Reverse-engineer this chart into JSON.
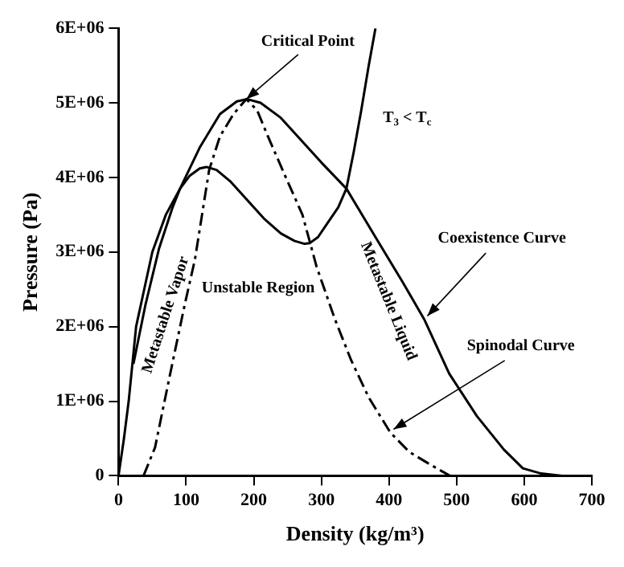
{
  "chart_data": {
    "type": "line",
    "xlabel": "Density (kg/m³)",
    "ylabel": "Pressure (Pa)",
    "xlim": [
      0,
      700
    ],
    "xticks": [
      0,
      100,
      200,
      300,
      400,
      500,
      600,
      700
    ],
    "ylim": [
      0,
      6000000
    ],
    "yticks": [
      0,
      {
        "value": 1000000,
        "label": "1E+06"
      },
      {
        "value": 2000000,
        "label": "2E+06"
      },
      {
        "value": 3000000,
        "label": "3E+06"
      },
      {
        "value": 4000000,
        "label": "4E+06"
      },
      {
        "value": 5000000,
        "label": "5E+06"
      },
      {
        "value": 6000000,
        "label": "6E+06"
      }
    ],
    "grid": false,
    "legend": false,
    "marker": "none",
    "series": [
      {
        "name": "T$_{3}$ < T$_{c}$",
        "color": "#000000",
        "line_style": "solid",
        "x": [
          22,
          40,
          60,
          80,
          91,
          105,
          120,
          130,
          145,
          165,
          190,
          215,
          240,
          260,
          275,
          283,
          295,
          310,
          325,
          337,
          348,
          359,
          370,
          380
        ],
        "values": [
          1500000,
          2300000,
          3050000,
          3600000,
          3850000,
          4020000,
          4120000,
          4140000,
          4100000,
          3950000,
          3700000,
          3450000,
          3250000,
          3150000,
          3110000,
          3120000,
          3200000,
          3400000,
          3600000,
          3850000,
          4350000,
          4900000,
          5500000,
          6000000
        ]
      },
      {
        "name": "Coexistence Curve",
        "color": "#000000",
        "line_style": "solid",
        "x": [
          0,
          8,
          15,
          26,
          50,
          70,
          91,
          120,
          150,
          175,
          190,
          210,
          240,
          270,
          300,
          337,
          380,
          420,
          452,
          489,
          530,
          570,
          598,
          625,
          656
        ],
        "values": [
          0,
          500000,
          1000000,
          2000000,
          3000000,
          3500000,
          3850000,
          4400000,
          4850000,
          5020000,
          5050000,
          5000000,
          4800000,
          4500000,
          4200000,
          3850000,
          3200000,
          2600000,
          2100000,
          1370000,
          800000,
          350000,
          100000,
          30000,
          0
        ]
      },
      {
        "name": "Spinodal Curve",
        "color": "#000000",
        "line_style": "dashed",
        "x": [
          37,
          54,
          76,
          98,
          113,
          134,
          150,
          170,
          189,
          205,
          221,
          245,
          272,
          293,
          320,
          344,
          370,
          402,
          430,
          461,
          490
        ],
        "values": [
          0,
          380000,
          1350000,
          2300000,
          2900000,
          4100000,
          4550000,
          4850000,
          5050000,
          4900000,
          4550000,
          4050000,
          3500000,
          2800000,
          2100000,
          1550000,
          1050000,
          580000,
          320000,
          150000,
          0
        ]
      }
    ],
    "annotations": [
      {
        "text": "Critical Point",
        "x": 189,
        "y": 5050000
      },
      "Metastable Vapor",
      "Unstable Region",
      "Metastable Liquid"
    ]
  }
}
